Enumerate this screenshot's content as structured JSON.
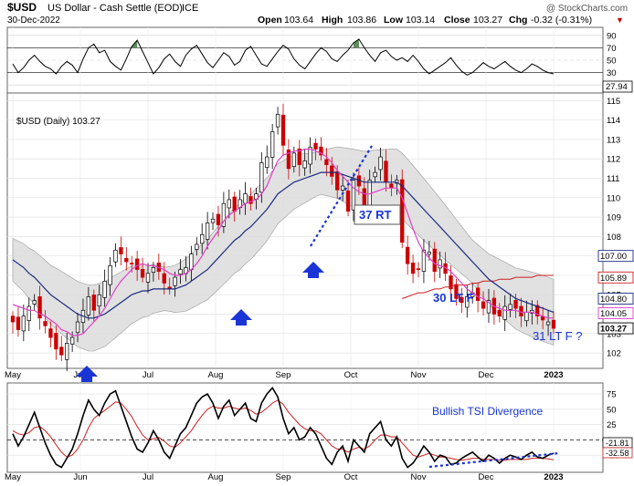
{
  "header": {
    "symbol": "$USD",
    "name": "US Dollar - Cash Settle (EOD)",
    "exchange": "ICE",
    "date": "30-Dec-2022",
    "watermark": "@ StockCharts.com",
    "open_label": "Open",
    "open": "103.64",
    "high_label": "High",
    "high": "103.86",
    "low_label": "Low",
    "low": "103.14",
    "close_label": "Close",
    "close": "103.27",
    "chg_label": "Chg",
    "chg": "-0.32 (-0.31%)",
    "chg_arrow": "▼"
  },
  "colors": {
    "price_up": "#ffffff",
    "price_down": "#cc0000",
    "ma_fast": "#e040c8",
    "ma_mid": "#1a2a80",
    "ma_slow": "#cc2020",
    "band_fill": "#dcdcdc",
    "rsi_fill": "#3c7a3c",
    "rsi_low_fill": "#8b5050",
    "annotation": "#1a35d6",
    "tsi_line": "#000000",
    "tsi_signal": "#cc2020"
  },
  "chart_data": [
    {
      "type": "line",
      "name": "RSI",
      "y_ticks": [
        90,
        70,
        50,
        30,
        10
      ],
      "ylim": [
        0,
        100
      ],
      "reference_lines": [
        70,
        30
      ],
      "last_value": "27.94",
      "values": [
        44,
        30,
        38,
        50,
        58,
        48,
        40,
        36,
        28,
        40,
        48,
        42,
        30,
        52,
        70,
        76,
        62,
        66,
        48,
        40,
        34,
        52,
        72,
        82,
        64,
        46,
        28,
        38,
        52,
        60,
        48,
        40,
        58,
        68,
        74,
        60,
        46,
        38,
        50,
        62,
        56,
        42,
        48,
        66,
        72,
        58,
        44,
        40,
        52,
        64,
        74,
        68,
        52,
        42,
        36,
        48,
        60,
        70,
        64,
        52,
        48,
        58,
        66,
        78,
        84,
        70,
        58,
        48,
        62,
        66,
        56,
        50,
        54,
        48,
        58,
        48,
        36,
        28,
        34,
        40,
        46,
        54,
        42,
        32,
        26,
        30,
        38,
        46,
        40,
        36,
        42,
        48,
        40,
        34,
        30,
        36,
        44,
        40,
        34,
        30,
        28
      ]
    },
    {
      "type": "bar",
      "name": "$USD (Daily) 103.27",
      "style": "candlestick",
      "x_tick_labels": [
        "May",
        "Jun",
        "Jul",
        "Aug",
        "Sep",
        "Oct",
        "Nov",
        "Dec",
        "2023"
      ],
      "y_ticks": [
        102,
        103,
        104,
        105,
        106,
        107,
        108,
        109,
        110,
        111,
        112,
        113,
        114,
        115
      ],
      "ylim": [
        101.3,
        115.3
      ],
      "close": [
        103.6,
        103.2,
        103.9,
        104.4,
        104.7,
        103.8,
        103.4,
        102.8,
        102.2,
        101.9,
        102.5,
        102.8,
        103.6,
        104.2,
        104.9,
        104.2,
        105.0,
        105.7,
        106.5,
        107.3,
        107.1,
        106.7,
        106.6,
        106.3,
        105.9,
        106.1,
        106.4,
        106.2,
        105.6,
        105.3,
        105.9,
        106.3,
        106.4,
        107.1,
        107.6,
        108.1,
        108.7,
        108.9,
        108.6,
        109.7,
        109.9,
        109.3,
        109.9,
        110.2,
        109.7,
        110.2,
        111.8,
        112.1,
        113.4,
        114.3,
        112.7,
        111.5,
        112.3,
        111.7,
        111.9,
        112.6,
        112.5,
        112.2,
        111.7,
        111.1,
        110.4,
        110.6,
        109.3,
        110.9,
        110.6,
        109.6,
        110.9,
        111.3,
        112.1,
        110.8,
        110.5,
        110.9,
        107.7,
        106.6,
        106.1,
        106.3,
        107.3,
        107.2,
        106.2,
        106.8,
        106.1,
        105.3,
        104.8,
        104.6,
        104.9,
        105.1,
        104.7,
        104.3,
        104.7,
        104.0,
        103.9,
        104.4,
        104.5,
        104.3,
        103.9,
        104.1,
        104.2,
        103.9,
        103.7,
        103.6,
        103.27
      ],
      "series": [
        {
          "name": "",
          "values": [
            104.5,
            104.4,
            104.3,
            104.2,
            104.2,
            104.0,
            103.9,
            103.7,
            103.5,
            103.2,
            103.1,
            102.9,
            102.9,
            103.0,
            103.3,
            103.6,
            103.9,
            104.3,
            104.8,
            105.3,
            105.7,
            106.0,
            106.3,
            106.5,
            106.6,
            106.5,
            106.5,
            106.4,
            106.3,
            106.1,
            106.0,
            106.0,
            106.1,
            106.3,
            106.6,
            107.0,
            107.5,
            107.9,
            108.3,
            108.8,
            109.1,
            109.3,
            109.5,
            109.7,
            109.8,
            109.9,
            110.2,
            110.6,
            111.3,
            111.9,
            112.2,
            112.3,
            112.4,
            112.4,
            112.5,
            112.5,
            112.4,
            112.3,
            112.1,
            111.8,
            111.4,
            111.1,
            110.8,
            110.5,
            110.3,
            110.2,
            110.2,
            110.3,
            110.4,
            110.5,
            110.5,
            110.5,
            110.0,
            109.2,
            108.4,
            107.7,
            107.2,
            106.9,
            106.6,
            106.5,
            106.4,
            106.2,
            105.9,
            105.6,
            105.3,
            105.1,
            104.9,
            104.8,
            104.6,
            104.4,
            104.3,
            104.2,
            104.2,
            104.2,
            104.1,
            104.1,
            104.1,
            104.0,
            103.9,
            103.8,
            103.8
          ]
        },
        {
          "name": "",
          "values": [
            106.8,
            106.6,
            106.4,
            106.1,
            105.9,
            105.6,
            105.3,
            105.0,
            104.8,
            104.6,
            104.4,
            104.2,
            104.0,
            103.9,
            103.8,
            103.8,
            103.9,
            104.0,
            104.2,
            104.4,
            104.6,
            104.8,
            105.0,
            105.1,
            105.2,
            105.2,
            105.3,
            105.3,
            105.3,
            105.3,
            105.3,
            105.4,
            105.5,
            105.7,
            105.9,
            106.1,
            106.3,
            106.6,
            106.9,
            107.2,
            107.5,
            107.8,
            108.0,
            108.3,
            108.5,
            108.8,
            109.1,
            109.4,
            109.8,
            110.2,
            110.4,
            110.6,
            110.8,
            110.9,
            111.0,
            111.1,
            111.2,
            111.3,
            111.3,
            111.3,
            111.3,
            111.2,
            111.1,
            111.0,
            110.9,
            110.8,
            110.8,
            110.8,
            110.8,
            110.8,
            110.8,
            110.8,
            110.6,
            110.3,
            110.0,
            109.7,
            109.4,
            109.1,
            108.8,
            108.5,
            108.2,
            107.9,
            107.6,
            107.3,
            107.0,
            106.7,
            106.4,
            106.1,
            105.8,
            105.6,
            105.4,
            105.2,
            105.0,
            104.8,
            104.7,
            104.6,
            104.5,
            104.4,
            104.3,
            104.2,
            104.1
          ]
        },
        {
          "name": "",
          "values": [
            null,
            null,
            null,
            null,
            null,
            null,
            null,
            null,
            null,
            null,
            null,
            null,
            null,
            null,
            null,
            null,
            null,
            null,
            null,
            null,
            null,
            null,
            null,
            null,
            null,
            null,
            null,
            null,
            null,
            null,
            null,
            null,
            null,
            null,
            null,
            null,
            null,
            null,
            null,
            null,
            null,
            null,
            null,
            null,
            null,
            null,
            null,
            null,
            null,
            null,
            null,
            null,
            null,
            null,
            null,
            null,
            null,
            null,
            null,
            null,
            null,
            null,
            null,
            null,
            null,
            null,
            null,
            null,
            null,
            null,
            null,
            null,
            104.8,
            104.9,
            105.0,
            105.1,
            105.1,
            105.2,
            105.3,
            105.3,
            105.4,
            105.4,
            105.5,
            105.5,
            105.5,
            105.6,
            105.6,
            105.7,
            105.7,
            105.7,
            105.8,
            105.8,
            105.8,
            105.9,
            105.9,
            105.9,
            105.9,
            106.0,
            106.0,
            106.0,
            106.0
          ]
        }
      ],
      "price_tags": [
        "107.00",
        "105.89",
        "104.80",
        "104.05",
        "103.27"
      ],
      "annotations": [
        {
          "text": "37 RT",
          "boxed": true
        },
        {
          "text": "30 LT F",
          "boxed": false
        },
        {
          "text": "31 LT F ?",
          "boxed": false
        }
      ]
    },
    {
      "type": "line",
      "name": "TSI",
      "y_ticks": [
        75,
        50,
        25,
        0,
        -25
      ],
      "ylim": [
        -50,
        90
      ],
      "last_value_1": "-21.81",
      "last_value_2": "-32.58",
      "annotation": "Bullish TSI Divergence",
      "series": [
        {
          "name": "",
          "values": [
            10,
            -10,
            5,
            25,
            45,
            20,
            -5,
            -25,
            -40,
            -45,
            -30,
            -15,
            10,
            40,
            65,
            50,
            40,
            60,
            75,
            80,
            55,
            30,
            5,
            -15,
            -20,
            -5,
            15,
            0,
            -20,
            -30,
            -10,
            10,
            20,
            40,
            60,
            70,
            75,
            60,
            35,
            55,
            65,
            40,
            50,
            60,
            35,
            30,
            60,
            75,
            85,
            70,
            35,
            10,
            20,
            0,
            5,
            20,
            10,
            -10,
            -30,
            -40,
            -20,
            -10,
            -35,
            0,
            -10,
            -20,
            10,
            20,
            30,
            0,
            -10,
            5,
            -30,
            -45,
            -38,
            -25,
            -10,
            -20,
            -35,
            -25,
            -28,
            -40,
            -38,
            -30,
            -25,
            -20,
            -28,
            -35,
            -25,
            -30,
            -38,
            -30,
            -25,
            -28,
            -32,
            -25,
            -20,
            -28,
            -30,
            -25,
            -21.81
          ]
        },
        {
          "name": "",
          "values": [
            15,
            10,
            8,
            12,
            20,
            22,
            15,
            5,
            -8,
            -20,
            -28,
            -25,
            -15,
            0,
            20,
            35,
            42,
            48,
            55,
            62,
            60,
            50,
            38,
            22,
            8,
            0,
            2,
            4,
            -2,
            -10,
            -12,
            -5,
            5,
            15,
            28,
            40,
            50,
            55,
            52,
            52,
            55,
            52,
            50,
            52,
            48,
            42,
            45,
            52,
            60,
            65,
            58,
            45,
            35,
            25,
            18,
            15,
            15,
            10,
            0,
            -10,
            -15,
            -15,
            -20,
            -15,
            -12,
            -15,
            -10,
            0,
            8,
            8,
            5,
            5,
            -5,
            -15,
            -25,
            -28,
            -25,
            -22,
            -25,
            -28,
            -28,
            -30,
            -32,
            -33,
            -32,
            -30,
            -30,
            -32,
            -32,
            -32,
            -33,
            -33,
            -32,
            -32,
            -32,
            -32,
            -30,
            -30,
            -30,
            -31,
            -32.58
          ]
        }
      ]
    }
  ]
}
